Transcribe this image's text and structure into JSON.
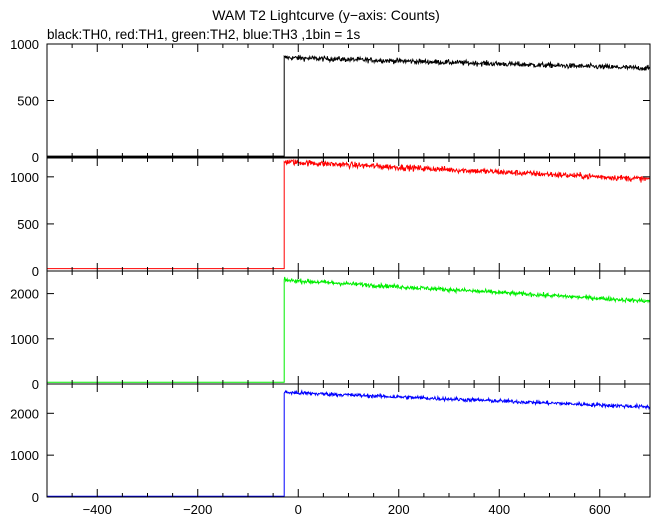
{
  "title": "WAM T2 Lightcurve (y−axis: Counts)",
  "subtitle": "black:TH0, red:TH1, green:TH2, blue:TH3 ,1bin = 1s",
  "chart_data": {
    "type": "line",
    "x_range": [
      -500,
      700
    ],
    "x_ticks": [
      -400,
      -200,
      0,
      200,
      400,
      600
    ],
    "x_tick_labels": [
      "−400",
      "−200",
      "0",
      "200",
      "400",
      "600"
    ],
    "panels": [
      {
        "series": "TH0",
        "color": "#000000",
        "ylim": [
          0,
          1000
        ],
        "y_ticks": [
          0,
          500,
          1000
        ],
        "trigger_x": -28,
        "pre_level": 8,
        "post_start": 880,
        "post_end": 785,
        "noise": 22
      },
      {
        "series": "TH1",
        "color": "#ff0000",
        "ylim": [
          0,
          1200
        ],
        "y_ticks": [
          0,
          500,
          1000
        ],
        "trigger_x": -28,
        "pre_level": 25,
        "post_start": 1160,
        "post_end": 975,
        "noise": 30
      },
      {
        "series": "TH2",
        "color": "#00ee00",
        "ylim": [
          0,
          2500
        ],
        "y_ticks": [
          0,
          1000,
          2000
        ],
        "trigger_x": -28,
        "pre_level": 40,
        "post_start": 2300,
        "post_end": 1830,
        "noise": 45
      },
      {
        "series": "TH3",
        "color": "#0000ff",
        "ylim": [
          0,
          2700
        ],
        "y_ticks": [
          0,
          1000,
          2000
        ],
        "trigger_x": -28,
        "pre_level": 20,
        "post_start": 2500,
        "post_end": 2150,
        "noise": 45
      }
    ]
  }
}
